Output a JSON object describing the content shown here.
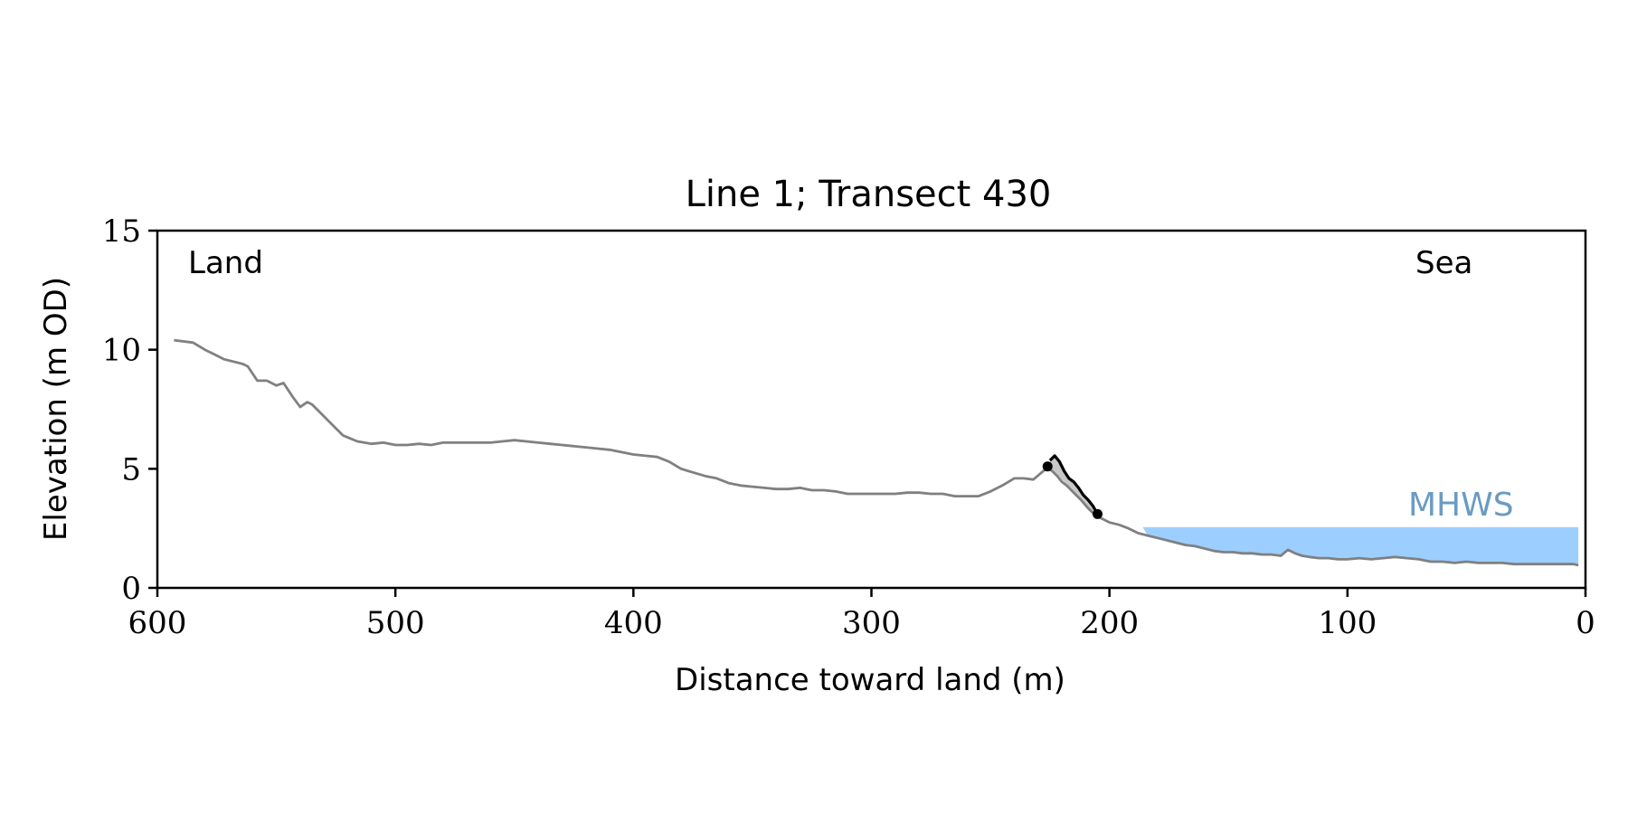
{
  "chart_data": {
    "type": "line",
    "title": "Line 1; Transect 430",
    "xlabel": "Distance toward land (m)",
    "ylabel": "Elevation (m OD)",
    "xlim": [
      600,
      0
    ],
    "ylim": [
      0,
      15
    ],
    "x_ticks": [
      600,
      500,
      400,
      300,
      200,
      100,
      0
    ],
    "y_ticks": [
      0,
      5,
      10,
      15
    ],
    "grid": false,
    "annotations": {
      "left": "Land",
      "right": "Sea",
      "mhws_label": "MHWS"
    },
    "mhws": {
      "elevation": 2.55,
      "x_start": 186,
      "x_end": 3
    },
    "series": [
      {
        "role": "profile",
        "color": "#808080",
        "x": [
          593,
          585,
          580,
          576,
          572,
          568,
          564,
          562,
          558,
          554,
          550,
          547,
          543,
          540,
          537,
          535,
          532,
          527,
          522,
          516,
          510,
          505,
          500,
          495,
          490,
          485,
          480,
          475,
          470,
          465,
          460,
          455,
          450,
          445,
          440,
          435,
          430,
          425,
          420,
          415,
          410,
          405,
          400,
          395,
          390,
          385,
          380,
          375,
          370,
          365,
          360,
          355,
          350,
          345,
          340,
          335,
          330,
          325,
          320,
          315,
          310,
          305,
          300,
          295,
          290,
          285,
          280,
          275,
          270,
          265,
          260,
          255,
          250,
          245,
          240,
          236,
          232,
          229,
          226,
          224,
          222,
          220,
          218,
          215,
          212,
          209,
          206,
          203,
          200,
          196,
          192,
          188,
          184,
          180,
          176,
          172,
          168,
          164,
          160,
          156,
          152,
          148,
          144,
          140,
          136,
          132,
          128,
          125,
          122,
          119,
          116,
          112,
          108,
          104,
          100,
          95,
          90,
          85,
          80,
          75,
          70,
          65,
          60,
          55,
          50,
          45,
          40,
          35,
          30,
          25,
          20,
          15,
          10,
          5,
          3
        ],
        "y": [
          10.4,
          10.3,
          10.0,
          9.8,
          9.6,
          9.5,
          9.4,
          9.3,
          8.7,
          8.7,
          8.5,
          8.6,
          8.0,
          7.6,
          7.8,
          7.7,
          7.4,
          6.9,
          6.4,
          6.15,
          6.05,
          6.1,
          6.0,
          6.0,
          6.05,
          6.0,
          6.1,
          6.1,
          6.1,
          6.1,
          6.1,
          6.15,
          6.2,
          6.15,
          6.1,
          6.05,
          6.0,
          5.95,
          5.9,
          5.85,
          5.8,
          5.7,
          5.6,
          5.55,
          5.5,
          5.3,
          5.0,
          4.85,
          4.7,
          4.6,
          4.4,
          4.3,
          4.25,
          4.2,
          4.15,
          4.15,
          4.2,
          4.1,
          4.1,
          4.05,
          3.95,
          3.95,
          3.95,
          3.95,
          3.95,
          4.0,
          4.0,
          3.95,
          3.95,
          3.85,
          3.85,
          3.85,
          4.05,
          4.3,
          4.6,
          4.6,
          4.55,
          4.8,
          5.05,
          4.9,
          4.7,
          4.45,
          4.3,
          4.0,
          3.7,
          3.35,
          3.05,
          2.9,
          2.75,
          2.65,
          2.5,
          2.3,
          2.2,
          2.1,
          2.0,
          1.9,
          1.8,
          1.75,
          1.65,
          1.55,
          1.5,
          1.5,
          1.45,
          1.45,
          1.4,
          1.4,
          1.35,
          1.6,
          1.45,
          1.35,
          1.3,
          1.25,
          1.25,
          1.2,
          1.2,
          1.25,
          1.2,
          1.25,
          1.3,
          1.25,
          1.2,
          1.1,
          1.1,
          1.05,
          1.1,
          1.05,
          1.05,
          1.05,
          1.0,
          1.0,
          1.0,
          1.0,
          1.0,
          1.0,
          0.95
        ]
      },
      {
        "role": "cliff-segment",
        "color": "#000000",
        "x": [
          225,
          223,
          221,
          219,
          217,
          215,
          213,
          211,
          209,
          207,
          205
        ],
        "y": [
          5.35,
          5.55,
          5.3,
          4.9,
          4.6,
          4.45,
          4.2,
          3.9,
          3.7,
          3.45,
          3.1
        ],
        "endpoint_markers": [
          [
            226,
            5.1
          ],
          [
            205,
            3.1
          ]
        ]
      }
    ],
    "cliff_shade": {
      "color": "#c8c8c8",
      "x": [
        225,
        223,
        221,
        219,
        217,
        215,
        213,
        211,
        209,
        207,
        205
      ],
      "y_top": [
        5.35,
        5.55,
        5.3,
        4.9,
        4.6,
        4.45,
        4.2,
        3.9,
        3.7,
        3.45,
        3.1
      ],
      "y_bottom": [
        5.0,
        4.85,
        4.65,
        4.45,
        4.25,
        4.05,
        3.8,
        3.6,
        3.4,
        3.2,
        3.05
      ]
    },
    "colors": {
      "water": "#9ccfff",
      "mhws_text": "#6a9bc3",
      "axis": "#000000"
    }
  }
}
